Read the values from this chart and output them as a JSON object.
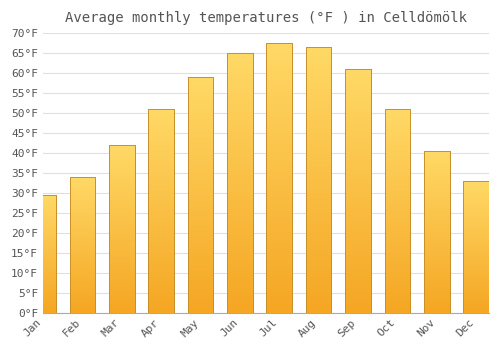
{
  "title": "Average monthly temperatures (°F ) in Celldömölk",
  "months": [
    "Jan",
    "Feb",
    "Mar",
    "Apr",
    "May",
    "Jun",
    "Jul",
    "Aug",
    "Sep",
    "Oct",
    "Nov",
    "Dec"
  ],
  "values": [
    29.5,
    34.0,
    42.0,
    51.0,
    59.0,
    65.0,
    67.5,
    66.5,
    61.0,
    51.0,
    40.5,
    33.0
  ],
  "bar_color_bottom": "#F5A623",
  "bar_color_top": "#FFD966",
  "bar_edge_color": "#C8902A",
  "background_color": "#FFFFFF",
  "plot_bg_color": "#FFFFFF",
  "grid_color": "#E0E0E0",
  "text_color": "#555555",
  "ylim": [
    0,
    70
  ],
  "ytick_step": 5,
  "title_fontsize": 10,
  "tick_fontsize": 8,
  "font_family": "monospace",
  "bar_width": 0.65
}
